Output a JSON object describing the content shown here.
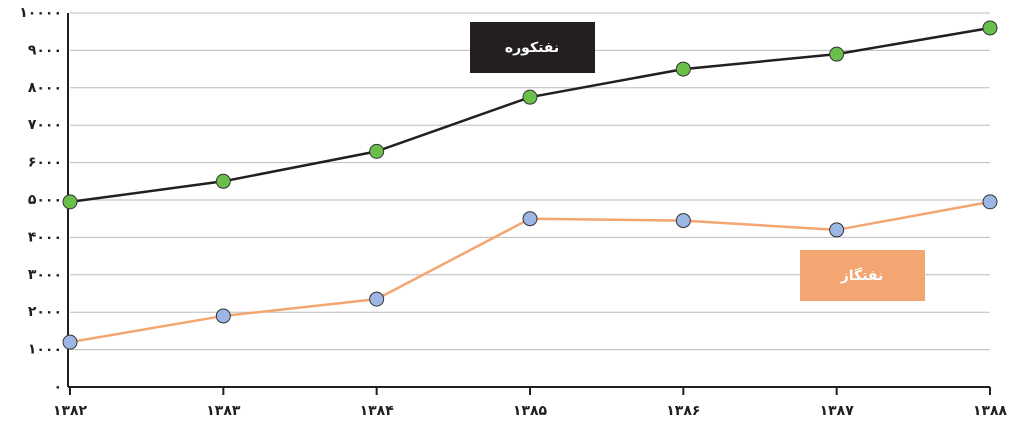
{
  "chart_data": {
    "type": "line",
    "categories": [
      "۱۳۸۲",
      "۱۳۸۳",
      "۱۳۸۴",
      "۱۳۸۵",
      "۱۳۸۶",
      "۱۳۸۷",
      "۱۳۸۸"
    ],
    "series": [
      {
        "name": "نفتکوره",
        "color": "#231f20",
        "marker_color": "#6abf4b",
        "values": [
          4950,
          5500,
          6300,
          7750,
          8500,
          8900,
          9600
        ]
      },
      {
        "name": "نفتگاز",
        "color": "#f4a672",
        "marker_color": "#9db7e4",
        "values": [
          1200,
          1900,
          2350,
          4500,
          4450,
          4200,
          4950
        ]
      }
    ],
    "ylim": [
      0,
      10000
    ],
    "yticks": [
      {
        "value": 0,
        "label": "۰"
      },
      {
        "value": 1000,
        "label": "۱۰۰۰"
      },
      {
        "value": 2000,
        "label": "۲۰۰۰"
      },
      {
        "value": 3000,
        "label": "۳۰۰۰"
      },
      {
        "value": 4000,
        "label": "۴۰۰۰"
      },
      {
        "value": 5000,
        "label": "۵۰۰۰"
      },
      {
        "value": 6000,
        "label": "۶۰۰۰"
      },
      {
        "value": 7000,
        "label": "۷۰۰۰"
      },
      {
        "value": 8000,
        "label": "۸۰۰۰"
      },
      {
        "value": 9000,
        "label": "۹۰۰۰"
      },
      {
        "value": 10000,
        "label": "۱۰۰۰۰"
      }
    ],
    "grid": true
  }
}
